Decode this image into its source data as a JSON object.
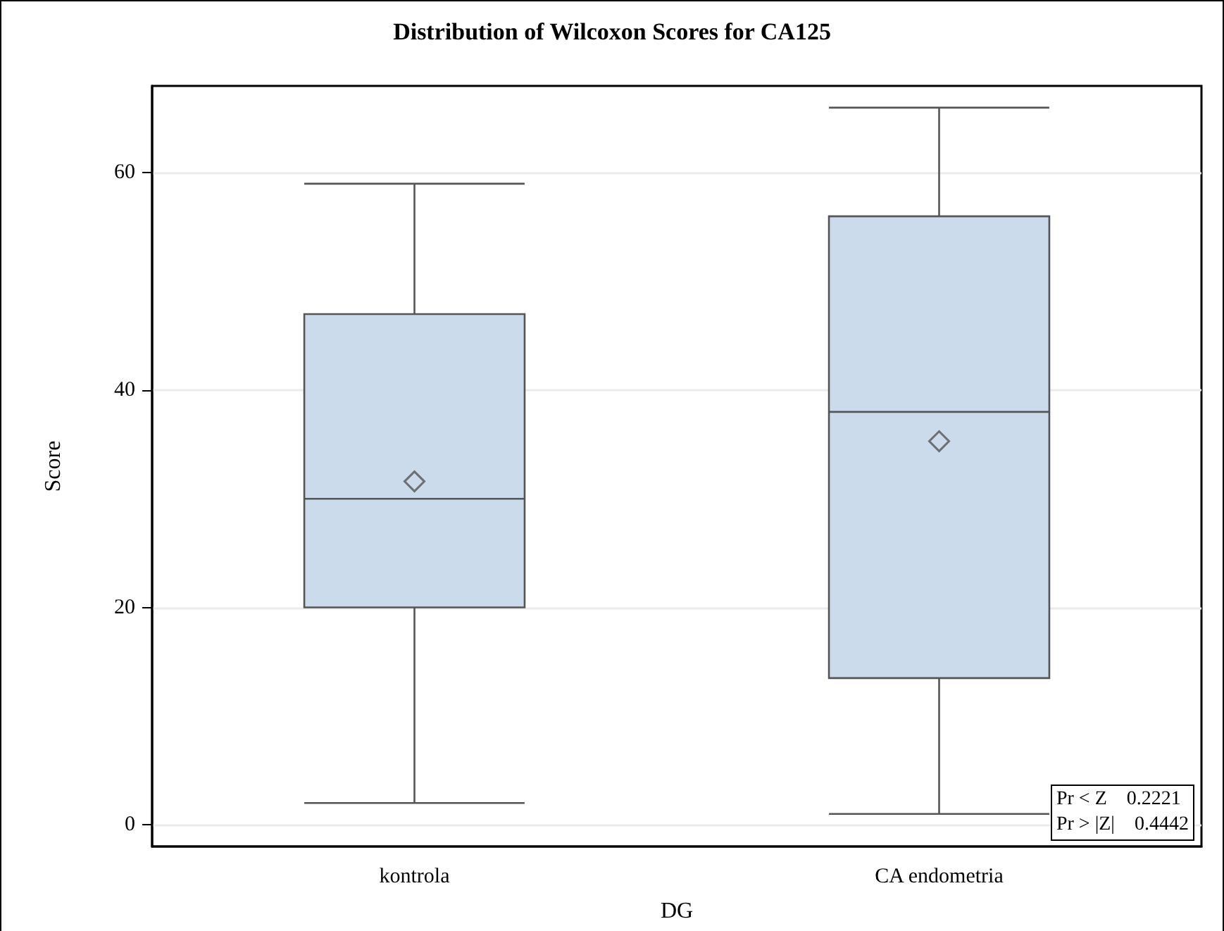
{
  "chart_data": {
    "type": "box",
    "title": "Distribution of Wilcoxon Scores for CA125",
    "xlabel": "DG",
    "ylabel": "Score",
    "categories": [
      "kontrola",
      "CA endometria"
    ],
    "series": [
      {
        "color": "#cbdbec",
        "boxes": [
          {
            "low": 2,
            "q1": 20,
            "median": 30,
            "q3": 47,
            "high": 59,
            "mean": 31.6
          },
          {
            "low": 1,
            "q1": 13.5,
            "median": 38,
            "q3": 56,
            "high": 66,
            "mean": 35.3
          }
        ]
      }
    ],
    "ylim": [
      -2,
      68
    ],
    "yticks": [
      0,
      20,
      40,
      60
    ],
    "grid": "y",
    "marker": "diamond",
    "annotations": [
      "Pr < Z    0.2221",
      "Pr > |Z|    0.4442"
    ]
  }
}
